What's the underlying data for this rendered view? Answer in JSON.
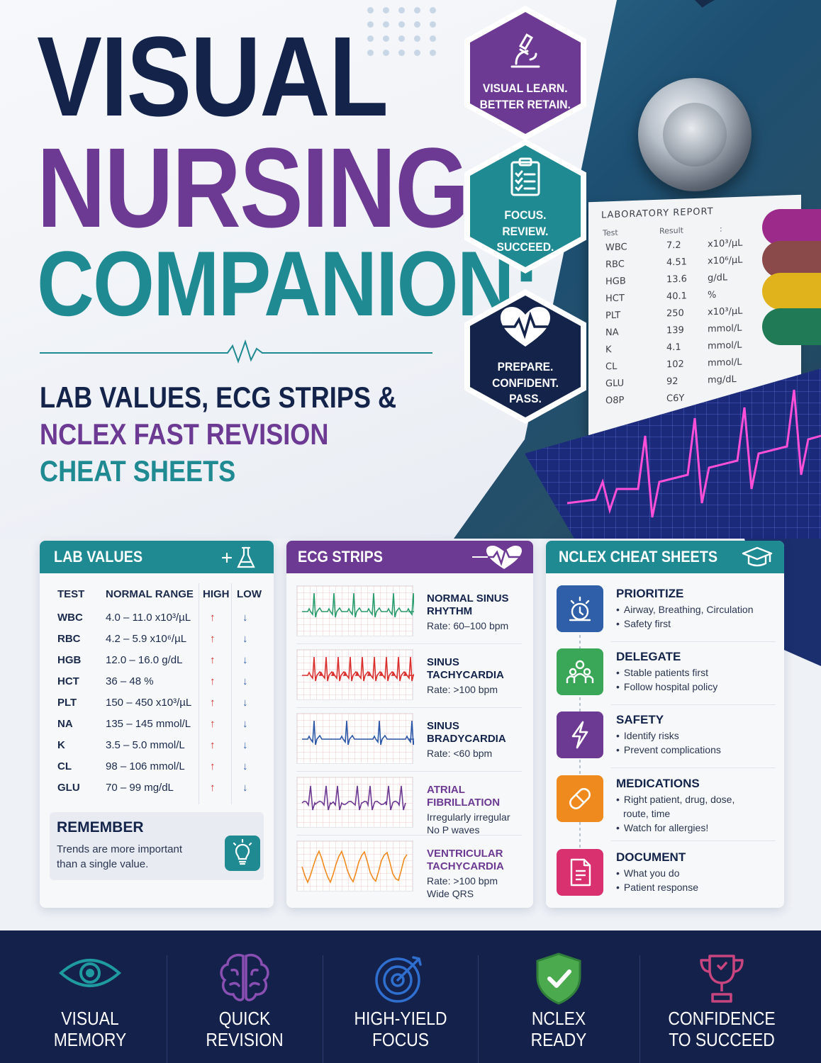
{
  "title": {
    "line1": "VISUAL",
    "line2": "NURSING",
    "line3": "COMPANION:"
  },
  "subtitle": {
    "line1": "LAB VALUES, ECG STRIPS &",
    "line2": "NCLEX FAST REVISION",
    "line3": "CHEAT SHEETS"
  },
  "hexagons": [
    {
      "icon": "microscope-icon",
      "text": "VISUAL LEARN.\nBETTER RETAIN.",
      "color": "#6c3a92"
    },
    {
      "icon": "clipboard-checklist-icon",
      "text": "FOCUS.\nREVIEW.\nSUCCEED.",
      "color": "#1f8a92"
    },
    {
      "icon": "heart-pulse-icon",
      "text": "PREPARE.\nCONFIDENT.\nPASS.",
      "color": "#13234a"
    }
  ],
  "lab_report": {
    "title": "LABORATORY REPORT",
    "headers": [
      "Test",
      "Result",
      ":"
    ],
    "rows": [
      {
        "test": "WBC",
        "result": "7.2",
        "unit": "x10³/µL"
      },
      {
        "test": "RBC",
        "result": "4.51",
        "unit": "x10⁶/µL"
      },
      {
        "test": "HGB",
        "result": "13.6",
        "unit": "g/dL"
      },
      {
        "test": "HCT",
        "result": "40.1",
        "unit": "%"
      },
      {
        "test": "PLT",
        "result": "250",
        "unit": "x10³/µL"
      },
      {
        "test": "NA",
        "result": "139",
        "unit": "mmol/L"
      },
      {
        "test": "K",
        "result": "4.1",
        "unit": "mmol/L"
      },
      {
        "test": "CL",
        "result": "102",
        "unit": "mmol/L"
      },
      {
        "test": "GLU",
        "result": "92",
        "unit": "mg/dL"
      },
      {
        "test": "O8P",
        "result": "C6Y",
        "unit": ""
      }
    ]
  },
  "lab_values": {
    "title": "LAB VALUES",
    "header_icon": "flask-icon",
    "color": "#1f8a92",
    "columns": [
      "TEST",
      "NORMAL RANGE",
      "HIGH",
      "LOW"
    ],
    "high_symbol": "↑",
    "low_symbol": "↓",
    "rows": [
      {
        "test": "WBC",
        "range": "4.0 – 11.0 x10³/µL"
      },
      {
        "test": "RBC",
        "range": "4.2 – 5.9 x10⁶/µL"
      },
      {
        "test": "HGB",
        "range": "12.0 – 16.0 g/dL"
      },
      {
        "test": "HCT",
        "range": "36 – 48 %"
      },
      {
        "test": "PLT",
        "range": "150 – 450 x10³/µL"
      },
      {
        "test": "NA",
        "range": "135 – 145 mmol/L"
      },
      {
        "test": "K",
        "range": "3.5 – 5.0 mmol/L"
      },
      {
        "test": "CL",
        "range": "98 – 106 mmol/L"
      },
      {
        "test": "GLU",
        "range": "70 – 99 mg/dL"
      }
    ],
    "remember": {
      "title": "REMEMBER",
      "body": "Trends are more important than a single value.",
      "icon": "lightbulb-icon"
    }
  },
  "ecg_strips": {
    "title": "ECG STRIPS",
    "header_icon": "heart-pulse-icon",
    "color": "#6c3a92",
    "items": [
      {
        "name": "NORMAL SINUS\nRHYTHM",
        "desc": "Rate: 60–100 bpm",
        "color": "#2a9d6f"
      },
      {
        "name": "SINUS\nTACHYCARDIA",
        "desc": "Rate: >100 bpm",
        "color": "#d9302e"
      },
      {
        "name": "SINUS\nBRADYCARDIA",
        "desc": "Rate: <60 bpm",
        "color": "#2b57a6"
      },
      {
        "name": "ATRIAL\nFIBRILLATION",
        "desc": "Irregularly irregular\nNo P waves",
        "color": "#6c3a92"
      },
      {
        "name": "VENTRICULAR\nTACHYCARDIA",
        "desc": "Rate: >100 bpm\nWide QRS",
        "color": "#ef8a1f"
      }
    ]
  },
  "nclex": {
    "title": "NCLEX CHEAT SHEETS",
    "header_icon": "graduation-cap-icon",
    "color": "#1f8a92",
    "items": [
      {
        "title": "PRIORITIZE",
        "bullets": [
          "Airway, Breathing, Circulation",
          "Safety first"
        ],
        "icon": "alarm-icon",
        "color": "#2f5fa8"
      },
      {
        "title": "DELEGATE",
        "bullets": [
          "Stable patients first",
          "Follow hospital policy"
        ],
        "icon": "team-icon",
        "color": "#3aa657"
      },
      {
        "title": "SAFETY",
        "bullets": [
          "Identify risks",
          "Prevent complications"
        ],
        "icon": "lightning-icon",
        "color": "#6c3a92"
      },
      {
        "title": "MEDICATIONS",
        "bullets": [
          "Right patient, drug, dose,",
          "route, time",
          "Watch for allergies!"
        ],
        "icon": "pill-icon",
        "color": "#ef8a1f"
      },
      {
        "title": "DOCUMENT",
        "bullets": [
          "What you do",
          "Patient response"
        ],
        "icon": "document-icon",
        "color": "#d9306f"
      }
    ]
  },
  "footer": [
    {
      "label": "VISUAL\nMEMORY",
      "icon": "eye-icon",
      "color": "#1f9aa0"
    },
    {
      "label": "QUICK\nREVISION",
      "icon": "brain-icon",
      "color": "#8a4fb3"
    },
    {
      "label": "HIGH-YIELD\nFOCUS",
      "icon": "target-icon",
      "color": "#2f6fd0"
    },
    {
      "label": "NCLEX\nREADY",
      "icon": "shield-check-icon",
      "color": "#4caa4e"
    },
    {
      "label": "CONFIDENCE\nTO SUCCEED",
      "icon": "trophy-icon",
      "color": "#c8457f"
    }
  ]
}
